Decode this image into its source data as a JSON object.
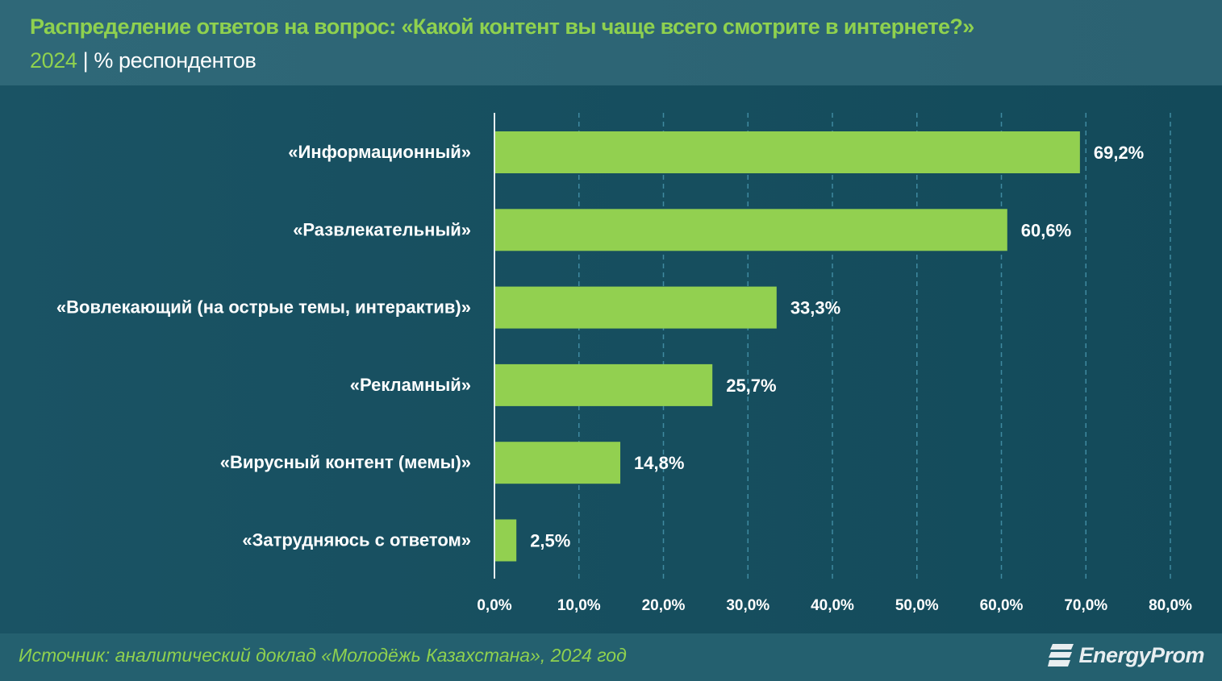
{
  "header": {
    "title": "Распределение ответов на вопрос: «Какой контент вы чаще всего смотрите в интернете?»",
    "year": "2024",
    "separator": "|",
    "unit": "% респондентов"
  },
  "footer": {
    "source": "Источник: аналитический доклад «Молодёжь Казахстана», 2024 год",
    "logo": "EnergyProm"
  },
  "colors": {
    "bar": "#92d050",
    "accent": "#8fd14f"
  },
  "chart_data": {
    "type": "bar",
    "orientation": "horizontal",
    "categories": [
      "«Информационный»",
      "«Развлекательный»",
      "«Вовлекающий (на острые темы, интерактив)»",
      "«Рекламный»",
      "«Вирусный контент (мемы)»",
      "«Затрудняюсь с ответом»"
    ],
    "values": [
      69.2,
      60.6,
      33.3,
      25.7,
      14.8,
      2.5
    ],
    "value_labels": [
      "69,2%",
      "60,6%",
      "33,3%",
      "25,7%",
      "14,8%",
      "2,5%"
    ],
    "xlim": [
      0,
      80
    ],
    "ticks": [
      0,
      10,
      20,
      30,
      40,
      50,
      60,
      70,
      80
    ],
    "tick_labels": [
      "0,0%",
      "10,0%",
      "20,0%",
      "30,0%",
      "40,0%",
      "50,0%",
      "60,0%",
      "70,0%",
      "80,0%"
    ],
    "grid": true
  }
}
